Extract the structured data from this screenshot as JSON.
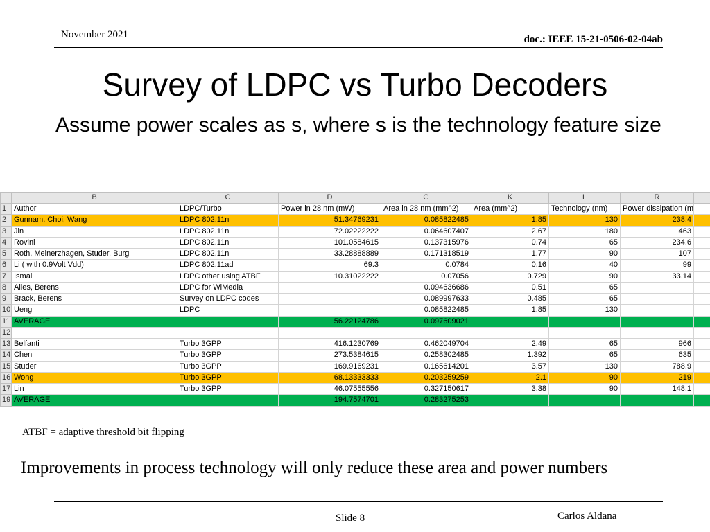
{
  "header": {
    "date": "November 2021",
    "doc_id": "doc.: IEEE 15-21-0506-02-04ab"
  },
  "title": "Survey of LDPC vs Turbo Decoders",
  "subtitle": "Assume power scales as s, where s is the technology feature size",
  "spreadsheet": {
    "column_letters": [
      "B",
      "C",
      "D",
      "G",
      "K",
      "L",
      "R"
    ],
    "rows": [
      {
        "num": "1",
        "style": "plain",
        "cells": [
          "Author",
          "LDPC/Turbo",
          "Power in 28 nm (mW)",
          "Area in 28 nm (mm^2)",
          "Area (mm^2)",
          "Technology (nm)",
          "Power dissipation (mW)"
        ]
      },
      {
        "num": "2",
        "style": "orange",
        "cells": [
          "Gunnam, Choi, Wang",
          "LDPC 802.11n",
          "51.34769231",
          "0.085822485",
          "1.85",
          "130",
          "238.4"
        ]
      },
      {
        "num": "3",
        "style": "plain",
        "cells": [
          "Jin",
          "LDPC 802.11n",
          "72.02222222",
          "0.064607407",
          "2.67",
          "180",
          "463"
        ]
      },
      {
        "num": "4",
        "style": "plain",
        "cells": [
          "Rovini",
          "LDPC 802.11n",
          "101.0584615",
          "0.137315976",
          "0.74",
          "65",
          "234.6"
        ]
      },
      {
        "num": "5",
        "style": "plain",
        "cells": [
          "Roth, Meinerzhagen, Studer, Burg",
          "LDPC 802.11n",
          "33.28888889",
          "0.171318519",
          "1.77",
          "90",
          "107"
        ]
      },
      {
        "num": "6",
        "style": "plain",
        "cells": [
          "Li ( with 0.9Volt Vdd)",
          "LDPC 802.11ad",
          "69.3",
          "0.0784",
          "0.16",
          "40",
          "99"
        ]
      },
      {
        "num": "7",
        "style": "plain",
        "cells": [
          "Ismail",
          "LDPC other using ATBF",
          "10.31022222",
          "0.07056",
          "0.729",
          "90",
          "33.14"
        ]
      },
      {
        "num": "8",
        "style": "plain",
        "cells": [
          "Alles, Berens",
          "LDPC for WiMedia",
          "",
          "0.094636686",
          "0.51",
          "65",
          ""
        ]
      },
      {
        "num": "9",
        "style": "plain",
        "cells": [
          "Brack, Berens",
          "Survey on LDPC codes",
          "",
          "0.089997633",
          "0.485",
          "65",
          ""
        ]
      },
      {
        "num": "10",
        "style": "plain",
        "cells": [
          "Ueng",
          "LDPC",
          "",
          "0.085822485",
          "1.85",
          "130",
          ""
        ]
      },
      {
        "num": "11",
        "style": "green",
        "cells": [
          "AVERAGE",
          "",
          "56.22124786",
          "0.097609021",
          "",
          "",
          ""
        ]
      },
      {
        "num": "12",
        "style": "plain",
        "cells": [
          "",
          "",
          "",
          "",
          "",
          "",
          ""
        ]
      },
      {
        "num": "13",
        "style": "plain",
        "cells": [
          "Belfanti",
          "Turbo 3GPP",
          "416.1230769",
          "0.462049704",
          "2.49",
          "65",
          "966"
        ]
      },
      {
        "num": "14",
        "style": "plain",
        "cells": [
          "Chen",
          "Turbo 3GPP",
          "273.5384615",
          "0.258302485",
          "1.392",
          "65",
          "635"
        ]
      },
      {
        "num": "15",
        "style": "plain",
        "cells": [
          "Studer",
          "Turbo 3GPP",
          "169.9169231",
          "0.165614201",
          "3.57",
          "130",
          "788.9"
        ]
      },
      {
        "num": "16",
        "style": "orange",
        "cells": [
          "Wong",
          "Turbo 3GPP",
          "68.13333333",
          "0.203259259",
          "2.1",
          "90",
          "219"
        ]
      },
      {
        "num": "17",
        "style": "plain",
        "cells": [
          "Lin",
          "Turbo 3GPP",
          "46.07555556",
          "0.327150617",
          "3.38",
          "90",
          "148.1"
        ]
      },
      {
        "num": "19",
        "style": "green",
        "cells": [
          "AVERAGE",
          "",
          "194.7574701",
          "0.283275253",
          "",
          "",
          ""
        ]
      }
    ]
  },
  "note": "ATBF = adaptive threshold bit flipping",
  "conclusion": "Improvements in process technology will only reduce these area and power numbers",
  "footer": {
    "slide": "Slide 8",
    "author": "Carlos Aldana"
  },
  "colors": {
    "highlight_orange": "#ffc000",
    "highlight_green": "#00b050",
    "header_gray": "#e6e6e6"
  }
}
